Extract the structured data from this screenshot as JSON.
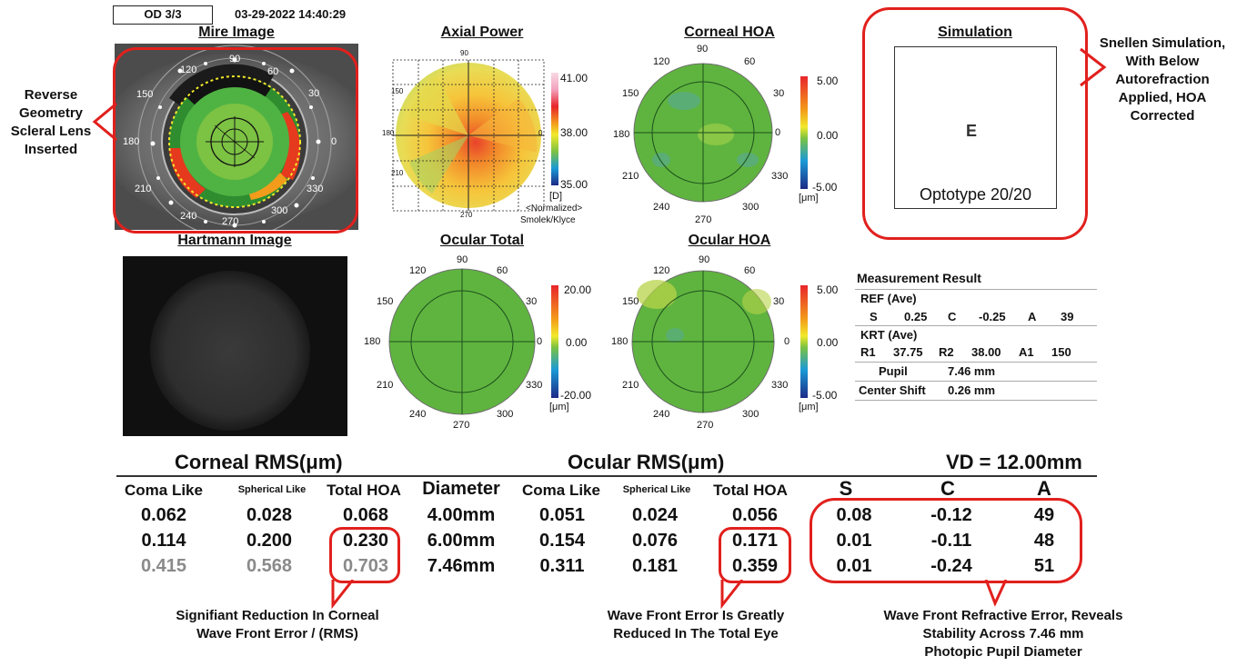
{
  "header": {
    "eye_label": "OD 3/3",
    "datetime": "03-29-2022 14:40:29"
  },
  "titles": {
    "mire": "Mire Image",
    "axial": "Axial Power",
    "corneal_hoa": "Corneal HOA",
    "simulation": "Simulation",
    "hartmann": "Hartmann Image",
    "ocular_total": "Ocular Total",
    "ocular_hoa": "Ocular HOA"
  },
  "mire_labels": {
    "a90": "90",
    "a60": "60",
    "a30": "30",
    "a0": "0",
    "a330": "330",
    "a300": "300",
    "a270": "270",
    "a240": "240",
    "a210": "210",
    "a180": "180",
    "a150": "150",
    "a120": "120"
  },
  "map_axis_labels": {
    "a90": "90",
    "a60": "60",
    "a30": "30",
    "a0": "0",
    "a330": "330",
    "a300": "300",
    "a270": "270",
    "a240": "240",
    "a210": "210",
    "a180": "180",
    "a150": "150",
    "a120": "120"
  },
  "axial_scale": {
    "top": "41.00",
    "mid": "38.00",
    "bottom": "35.00",
    "unit": "[D]",
    "note1": "<Normalized>",
    "note2": "Smolek/Klyce"
  },
  "corneal_hoa_scale": {
    "top": "5.00",
    "mid": "0.00",
    "bottom": "-5.00",
    "unit": "[μm]"
  },
  "ocular_total_scale": {
    "top": "20.00",
    "mid": "0.00",
    "bottom": "-20.00",
    "unit": "[μm]"
  },
  "ocular_hoa_scale": {
    "top": "5.00",
    "mid": "0.00",
    "bottom": "-5.00",
    "unit": "[μm]"
  },
  "simulation": {
    "letter": "E",
    "optotype": "Optotype 20/20"
  },
  "callouts": {
    "left": "Reverse\nGeometry\nScleral Lens\nInserted",
    "right": "Snellen Simulation,\nWith Below\nAutorefraction\nApplied, HOA\nCorrected",
    "corneal": "Signifiant Reduction In Corneal\nWave Front Error / (RMS)",
    "ocular": "Wave Front Error Is Greatly\nReduced In The Total Eye",
    "refractive": "Wave Front Refractive Error, Reveals\nStability Across 7.46 mm\nPhotopic Pupil Diameter"
  },
  "measurement": {
    "title": "Measurement Result",
    "ref_label": "REF (Ave)",
    "ref": {
      "s_label": "S",
      "s": "0.25",
      "c_label": "C",
      "c": "-0.25",
      "a_label": "A",
      "a": "39"
    },
    "krt_label": "KRT (Ave)",
    "krt": {
      "r1_label": "R1",
      "r1": "37.75",
      "r2_label": "R2",
      "r2": "38.00",
      "a1_label": "A1",
      "a1": "150"
    },
    "pupil_label": "Pupil",
    "pupil": "7.46 mm",
    "shift_label": "Center Shift",
    "shift": "0.26 mm"
  },
  "rms_table": {
    "corneal_title": "Corneal RMS(μm)",
    "ocular_title": "Ocular RMS(μm)",
    "vd_title": "VD = 12.00mm",
    "headers": {
      "coma": "Coma Like",
      "spherical": "Spherical Like",
      "total": "Total HOA",
      "diameter": "Diameter",
      "ocoma": "Coma Like",
      "ospherical": "Spherical Like",
      "ototal": "Total HOA",
      "s": "S",
      "c": "C",
      "a": "A"
    },
    "rows": [
      {
        "coma": "0.062",
        "spherical": "0.028",
        "total": "0.068",
        "diameter": "4.00mm",
        "ocoma": "0.051",
        "ospherical": "0.024",
        "ototal": "0.056",
        "s": "0.08",
        "c": "-0.12",
        "a": "49"
      },
      {
        "coma": "0.114",
        "spherical": "0.200",
        "total": "0.230",
        "diameter": "6.00mm",
        "ocoma": "0.154",
        "ospherical": "0.076",
        "ototal": "0.171",
        "s": "0.01",
        "c": "-0.11",
        "a": "48"
      },
      {
        "coma": "0.415",
        "spherical": "0.568",
        "total": "0.703",
        "diameter": "7.46mm",
        "ocoma": "0.311",
        "ospherical": "0.181",
        "ototal": "0.359",
        "s": "0.01",
        "c": "-0.24",
        "a": "51"
      }
    ]
  },
  "colors": {
    "highlight": "#e1201d",
    "map_green": "#66bb3a"
  }
}
